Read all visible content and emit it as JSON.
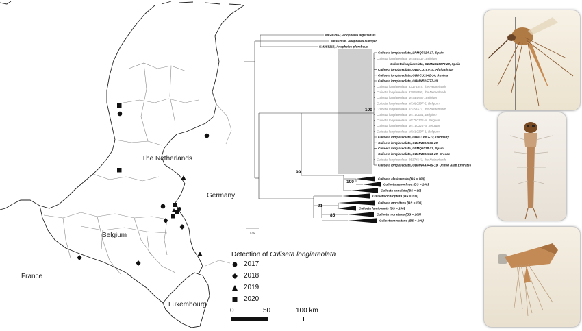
{
  "map": {
    "countries": {
      "netherlands": "The Netherlands",
      "belgium": "Belgium",
      "germany": "Germany",
      "france": "France",
      "luxembourg": "Luxembourg"
    },
    "legend": {
      "title_prefix": "Detection of ",
      "title_species": "Culiseta longiareolata",
      "items": [
        {
          "year": "2017",
          "symbol": "circle"
        },
        {
          "year": "2018",
          "symbol": "diamond"
        },
        {
          "year": "2019",
          "symbol": "triangle"
        },
        {
          "year": "2020",
          "symbol": "square"
        }
      ]
    },
    "scale": {
      "t0": "0",
      "t50": "50",
      "t100": "100 km"
    }
  },
  "tree": {
    "scale_label": "0.02",
    "outgroups": [
      "MK402867, Anopheles algeriensis",
      "MK402896, Anopheles claviger",
      "KM258216, Anopheles plumbeus"
    ],
    "longiareolata": [
      {
        "label": "Culiseta longiareolata, LRMQ5024-17, Spain",
        "style": "black"
      },
      {
        "label": "Culiseta longiareolata, M18B0317, Belgium",
        "style": "gray"
      },
      {
        "label": "Culiseta longiareolata, GBMNB25078-20, Spain",
        "style": "black"
      },
      {
        "label": "Culiseta longiareolata, GBDCU787-14, Afghanistan",
        "style": "black"
      },
      {
        "label": "Culiseta longiareolata, GBDCU1042-14, Austria",
        "style": "black"
      },
      {
        "label": "Culiseta longiareolata, GBMNB15777-20",
        "style": "black"
      },
      {
        "label": "Culiseta longiareolata, 33174349, the Netherlands",
        "style": "gray"
      },
      {
        "label": "Culiseta longiareolata, 33568890, the Netherlands",
        "style": "gray"
      },
      {
        "label": "Culiseta longiareolata, M18B0597, Belgium",
        "style": "gray"
      },
      {
        "label": "Culiseta longiareolata, M16L0397-2, Belgium",
        "style": "gray"
      },
      {
        "label": "Culiseta longiareolata, 33261671, the Netherlands",
        "style": "gray"
      },
      {
        "label": "Culiseta longiareolata, M17L0061, Belgium",
        "style": "gray"
      },
      {
        "label": "Culiseta longiareolata, M17L0126-A, Belgium",
        "style": "gray"
      },
      {
        "label": "Culiseta longiareolata, M17L0126-B, Belgium",
        "style": "gray"
      },
      {
        "label": "Culiseta longiareolata, M16L0397-1, Belgium",
        "style": "gray"
      },
      {
        "label": "Culiseta longiareolata, GBDCU907-12, Germany",
        "style": "black"
      },
      {
        "label": "Culiseta longiareolata, GBMNB13035-20",
        "style": "black"
      },
      {
        "label": "Culiseta longiareolata, LRMQ5028-17, Spain",
        "style": "black"
      },
      {
        "label": "Culiseta longiareolata, GBMNB15743-20, Greece",
        "style": "black"
      },
      {
        "label": "Culiseta longiareolata, 35374143, the Netherlands",
        "style": "gray"
      },
      {
        "label": "Culiseta longiareolata, GBMNA43449-19, United Arab Emirates",
        "style": "black"
      }
    ],
    "collapsed": [
      "Culiseta alaskaensis (BS = 100)",
      "Culiseta subochrea (BS = 100)",
      "Culiseta annulata (BS = 99)",
      "Culiseta ochroptera (BS = 100)",
      "Culiseta morsitans (BS = 100)",
      "Culiseta fumipennis (BS = 100)",
      "Culiseta morsitans (BS = 100)",
      "Culiseta morsitans (BS = 100)"
    ],
    "supports": {
      "longiareolata_clade": "100",
      "ingroup": "99",
      "annulata_group": "100",
      "morsitans_group": "91",
      "morsitans_pair": "85"
    }
  },
  "photos": [
    {
      "subject": "adult-mosquito"
    },
    {
      "subject": "larva"
    },
    {
      "subject": "larva-siphon"
    }
  ]
}
